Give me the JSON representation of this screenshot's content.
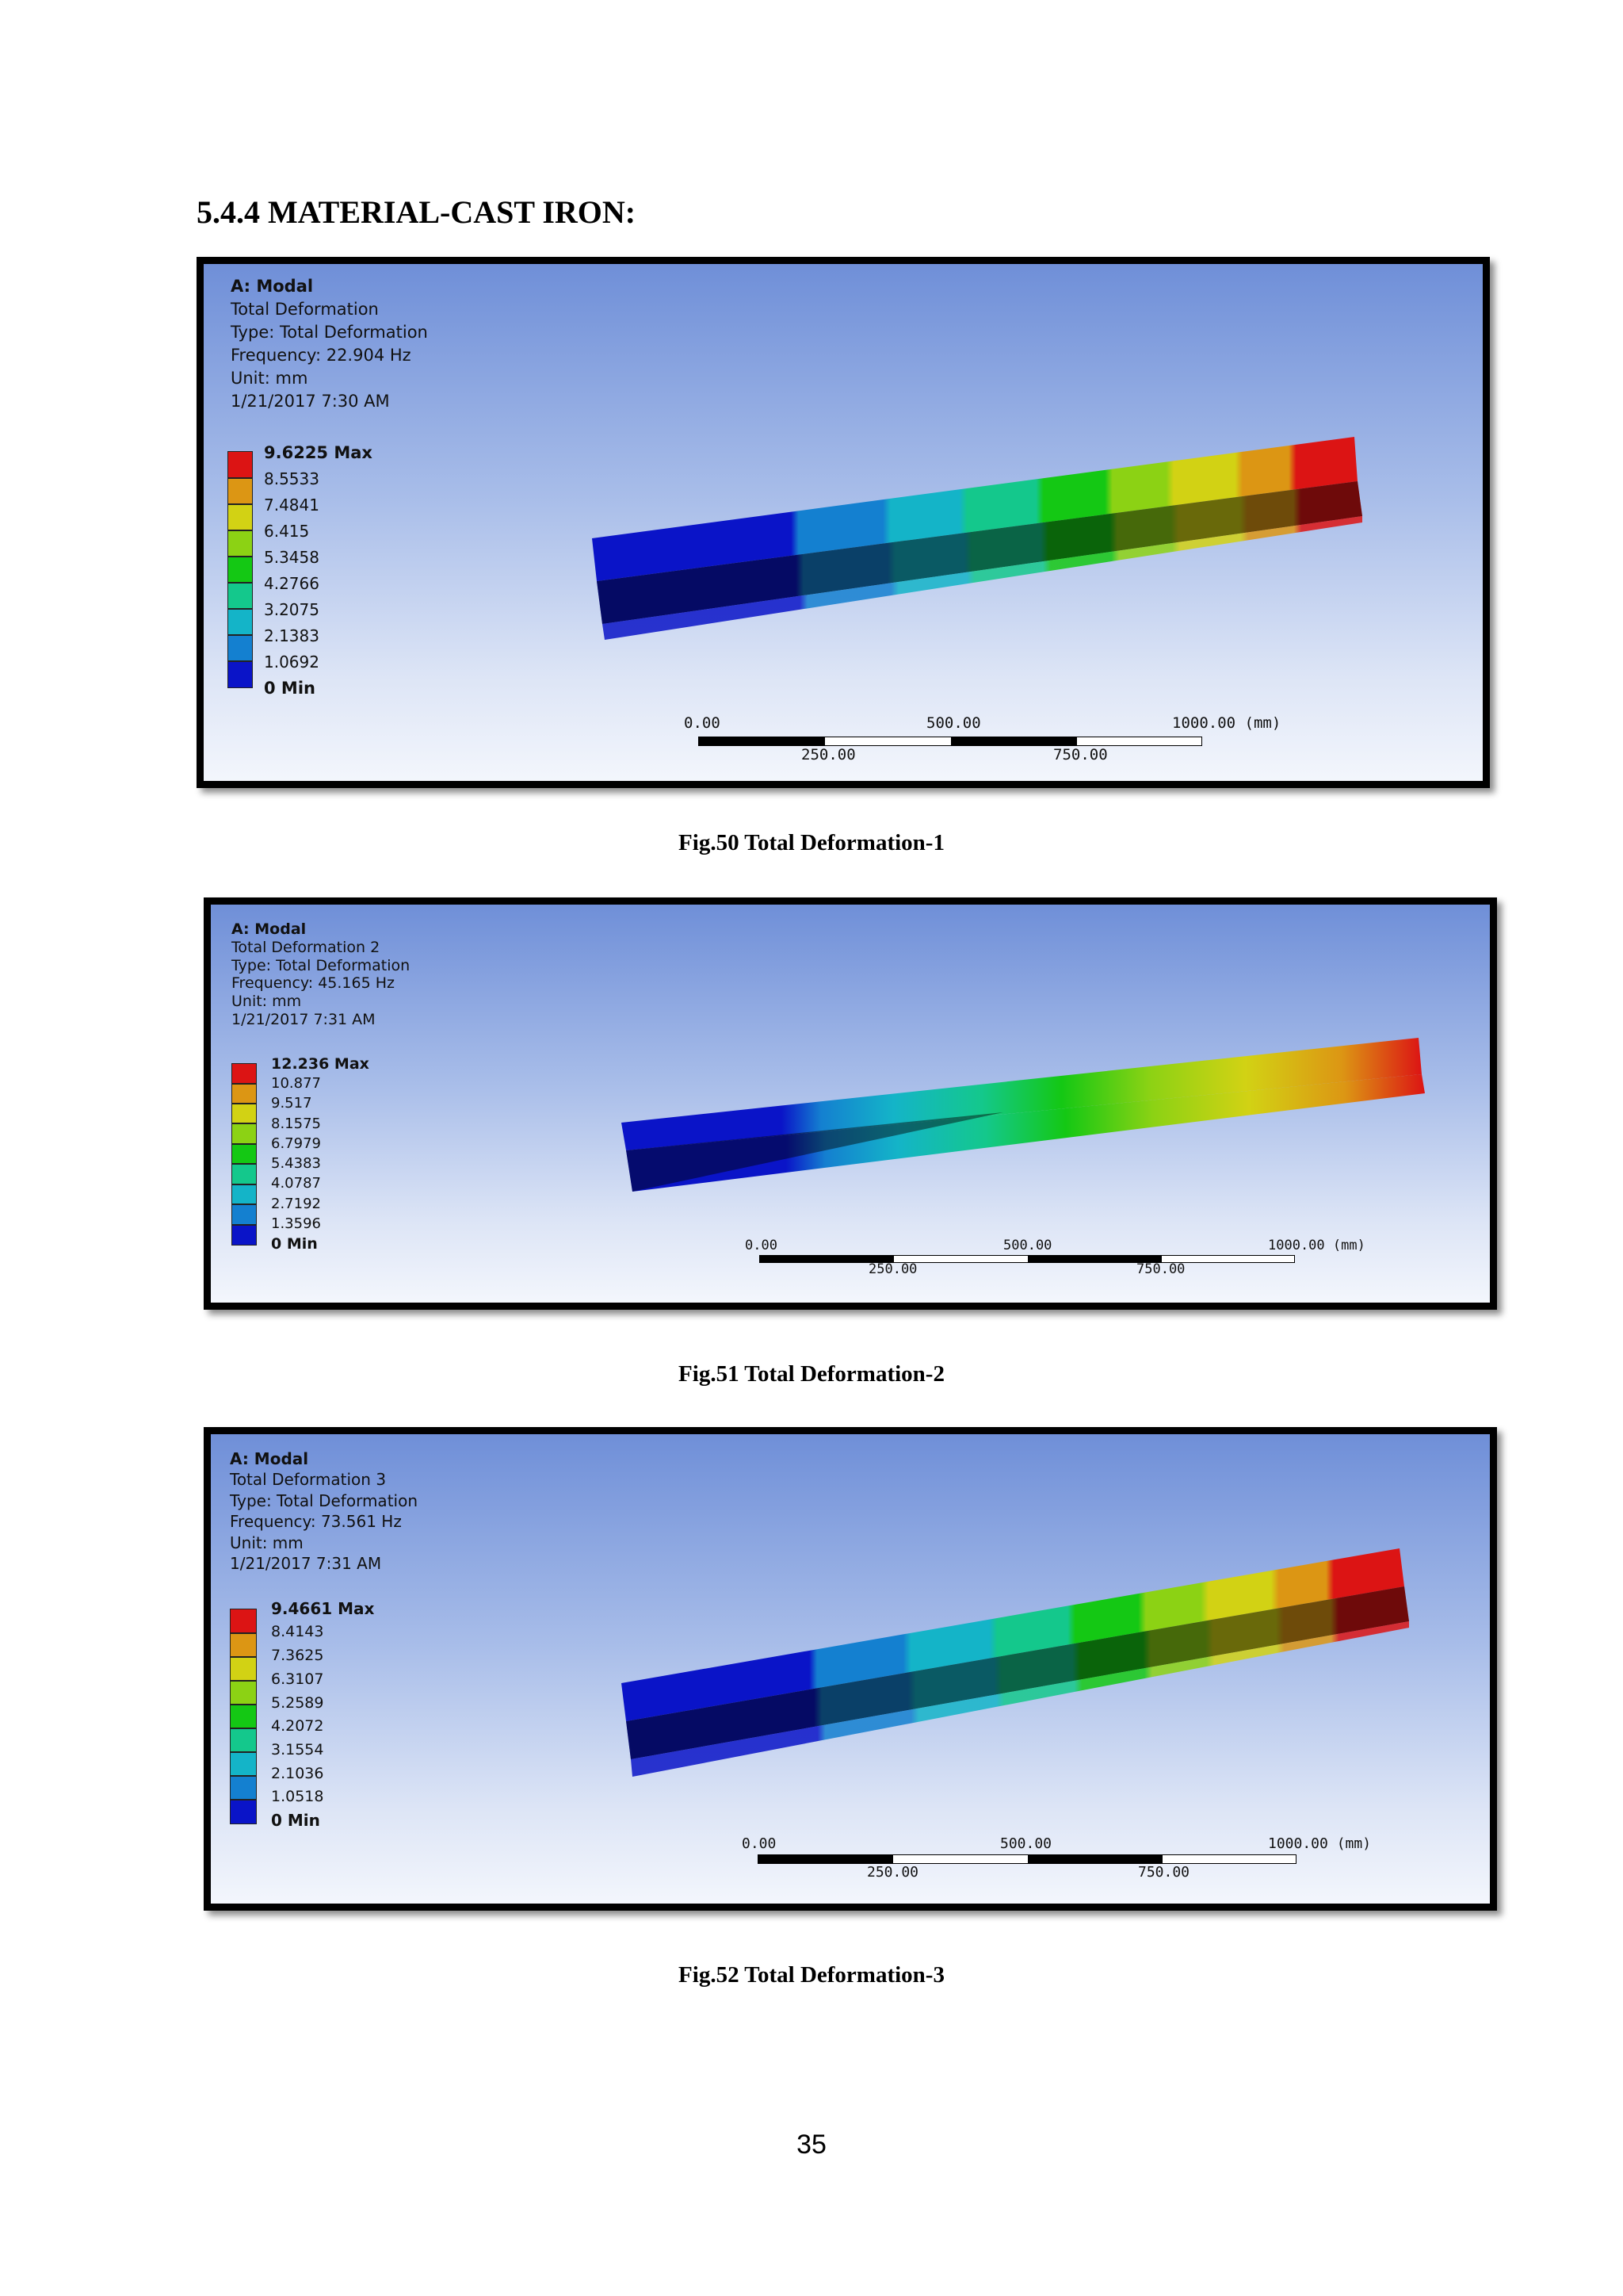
{
  "heading": "5.4.4 MATERIAL-CAST IRON:",
  "figures": [
    {
      "title": "A: Modal",
      "result_name": "Total Deformation",
      "type": "Type: Total Deformation",
      "frequency": "Frequency: 22.904 Hz",
      "unit": "Unit: mm",
      "timestamp": "1/21/2017 7:30 AM",
      "legend": [
        "9.6225 Max",
        "8.5533",
        "7.4841",
        "6.415",
        "5.3458",
        "4.2766",
        "3.2075",
        "2.1383",
        "1.0692",
        "0 Min"
      ],
      "scale": {
        "top": [
          "0.00",
          "500.00",
          "1000.00 (mm)"
        ],
        "bottom": [
          "250.00",
          "750.00"
        ]
      },
      "caption": "Fig.50 Total Deformation-1"
    },
    {
      "title": "A: Modal",
      "result_name": "Total Deformation 2",
      "type": "Type: Total Deformation",
      "frequency": "Frequency: 45.165 Hz",
      "unit": "Unit: mm",
      "timestamp": "1/21/2017 7:31 AM",
      "legend": [
        "12.236 Max",
        "10.877",
        "9.517",
        "8.1575",
        "6.7979",
        "5.4383",
        "4.0787",
        "2.7192",
        "1.3596",
        "0 Min"
      ],
      "scale": {
        "top": [
          "0.00",
          "500.00",
          "1000.00 (mm)"
        ],
        "bottom": [
          "250.00",
          "750.00"
        ]
      },
      "caption": "Fig.51 Total Deformation-2"
    },
    {
      "title": "A: Modal",
      "result_name": "Total Deformation 3",
      "type": "Type: Total Deformation",
      "frequency": "Frequency: 73.561 Hz",
      "unit": "Unit: mm",
      "timestamp": "1/21/2017 7:31 AM",
      "legend": [
        "9.4661 Max",
        "8.4143",
        "7.3625",
        "6.3107",
        "5.2589",
        "4.2072",
        "3.1554",
        "2.1036",
        "1.0518",
        "0 Min"
      ],
      "scale": {
        "top": [
          "0.00",
          "500.00",
          "1000.00 (mm)"
        ],
        "bottom": [
          "250.00",
          "750.00"
        ]
      },
      "caption": "Fig.52 Total Deformation-3"
    }
  ],
  "contour_colors": [
    "#0a14c8",
    "#1480d0",
    "#14b4c8",
    "#14c88c",
    "#14c814",
    "#8cd214",
    "#d2d214",
    "#dc9614",
    "#dc1414"
  ],
  "page_number": "35"
}
